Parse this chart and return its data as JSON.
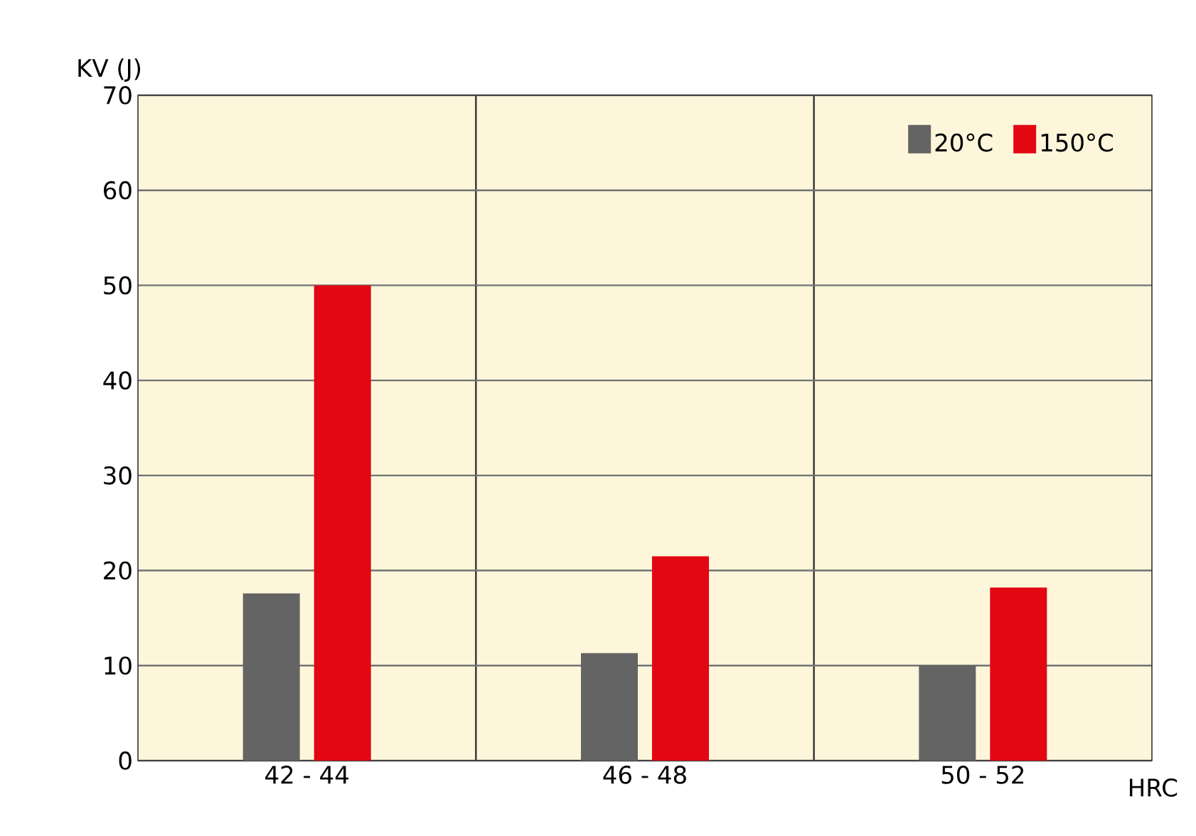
{
  "chart_data": {
    "type": "bar",
    "xlabel": "HRC",
    "ylabel": "KV (J)",
    "categories": [
      "42 - 44",
      "46 - 48",
      "50 - 52"
    ],
    "series": [
      {
        "name": "20°C",
        "color": "#646464",
        "values": [
          17.6,
          11.3,
          10
        ]
      },
      {
        "name": "150°C",
        "color": "#e30613",
        "values": [
          50,
          21.5,
          18.2
        ]
      }
    ],
    "ylim": [
      0,
      70
    ],
    "yticks": [
      0,
      10,
      20,
      30,
      40,
      50,
      60,
      70
    ],
    "grid": true,
    "legend": "top right"
  }
}
